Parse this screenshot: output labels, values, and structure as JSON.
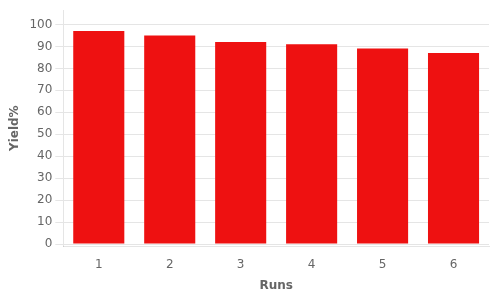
{
  "chart_data": {
    "type": "bar",
    "categories": [
      "1",
      "2",
      "3",
      "4",
      "5",
      "6"
    ],
    "values": [
      97,
      95,
      92,
      91,
      89,
      87
    ],
    "color": "#EE1111",
    "xlabel": "Runs",
    "ylabel": "Yield%",
    "ylim": [
      -1,
      106.5
    ],
    "yticks": [
      0,
      10,
      20,
      30,
      40,
      50,
      60,
      70,
      80,
      90,
      100
    ],
    "grid": true
  }
}
